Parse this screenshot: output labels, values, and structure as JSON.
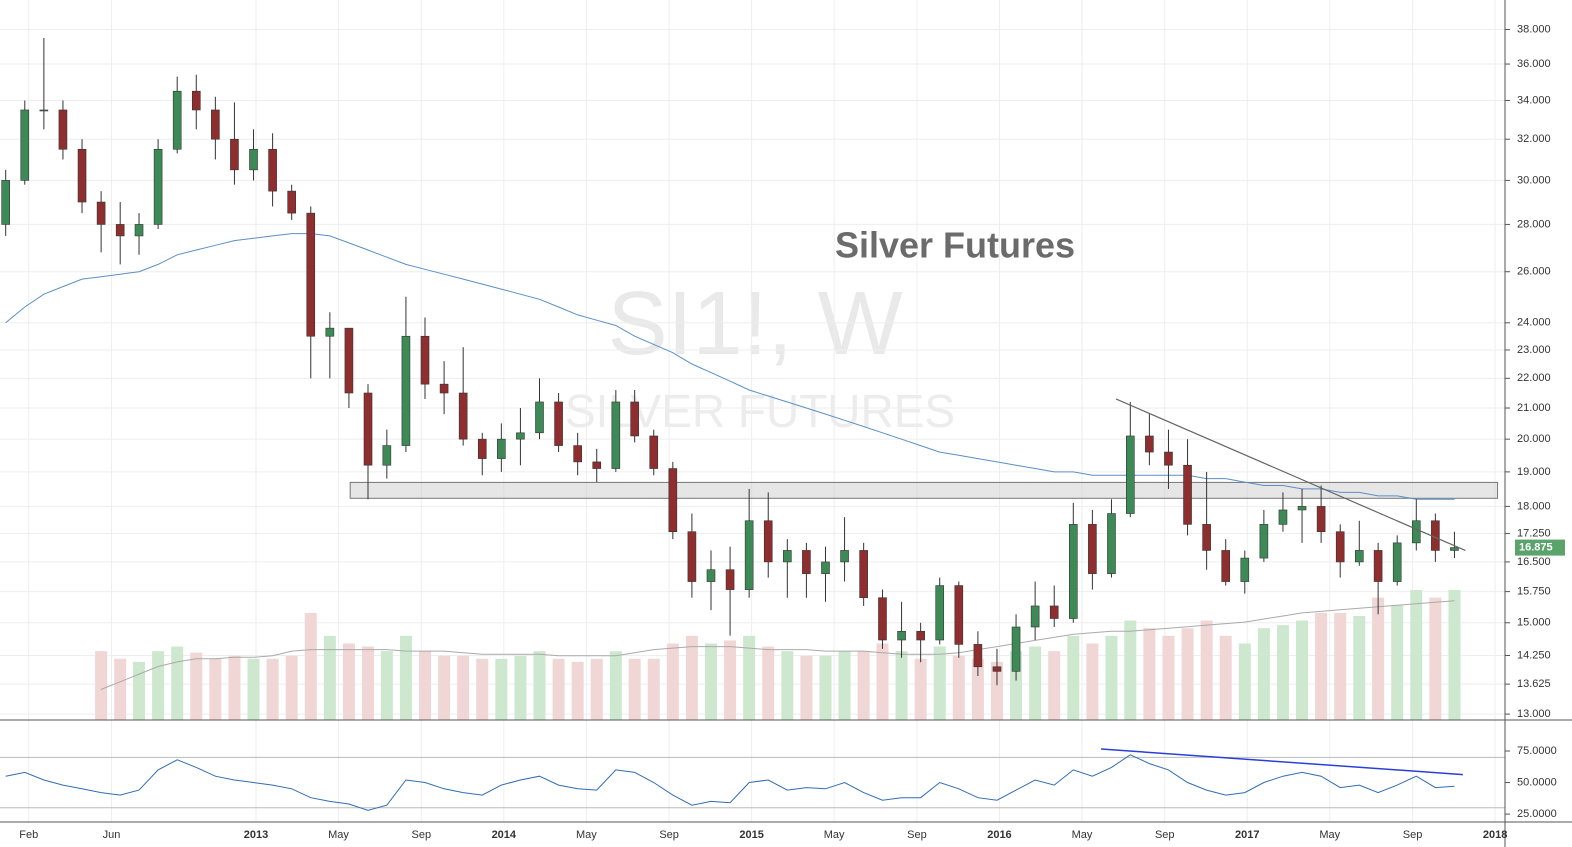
{
  "chart_data": {
    "type": "candlestick",
    "title": "Silver Futures",
    "watermark": "SI1!, W",
    "watermark_subtitle": "SILVER FUTURES",
    "log_y": true,
    "grid": true,
    "up_color": "#3e8a57",
    "down_color": "#8f2e2e",
    "xlim": [
      2011.967,
      2018.04
    ],
    "ylim": [
      12.88,
      39.8
    ],
    "xticks": [
      {
        "value": 2012.083,
        "label": "Feb"
      },
      {
        "value": 2012.417,
        "label": "Jun"
      },
      2013,
      {
        "value": 2013.333,
        "label": "May"
      },
      {
        "value": 2013.667,
        "label": "Sep"
      },
      2014,
      {
        "value": 2014.333,
        "label": "May"
      },
      {
        "value": 2014.667,
        "label": "Sep"
      },
      2015,
      {
        "value": 2015.333,
        "label": "May"
      },
      {
        "value": 2015.667,
        "label": "Sep"
      },
      2016,
      {
        "value": 2016.333,
        "label": "May"
      },
      {
        "value": 2016.667,
        "label": "Sep"
      },
      2017,
      {
        "value": 2017.333,
        "label": "May"
      },
      {
        "value": 2017.667,
        "label": "Sep"
      },
      2018
    ],
    "yticks": [
      {
        "value": 13,
        "label": "13.000"
      },
      {
        "value": 13.625,
        "label": "13.625"
      },
      {
        "value": 14.25,
        "label": "14.250"
      },
      {
        "value": 15,
        "label": "15.000"
      },
      {
        "value": 15.75,
        "label": "15.750"
      },
      {
        "value": 16.5,
        "label": "16.500"
      },
      {
        "value": 17.25,
        "label": "17.250"
      },
      {
        "value": 18,
        "label": "18.000"
      },
      {
        "value": 19,
        "label": "19.000"
      },
      {
        "value": 20,
        "label": "20.000"
      },
      {
        "value": 21,
        "label": "21.000"
      },
      {
        "value": 22,
        "label": "22.000"
      },
      {
        "value": 23,
        "label": "23.000"
      },
      {
        "value": 24,
        "label": "24.000"
      },
      {
        "value": 26,
        "label": "26.000"
      },
      {
        "value": 28,
        "label": "28.000"
      },
      {
        "value": 30,
        "label": "30.000"
      },
      {
        "value": 32,
        "label": "32.000"
      },
      {
        "value": 34,
        "label": "34.000"
      },
      {
        "value": 36,
        "label": "36.000"
      },
      {
        "value": 38,
        "label": "38.000"
      }
    ],
    "x": [
      2011.99,
      2012.067,
      2012.144,
      2012.221,
      2012.298,
      2012.375,
      2012.452,
      2012.528,
      2012.605,
      2012.682,
      2012.759,
      2012.836,
      2012.913,
      2012.99,
      2013.067,
      2013.144,
      2013.221,
      2013.298,
      2013.375,
      2013.452,
      2013.528,
      2013.605,
      2013.682,
      2013.759,
      2013.836,
      2013.913,
      2013.99,
      2014.067,
      2014.144,
      2014.221,
      2014.298,
      2014.375,
      2014.452,
      2014.528,
      2014.605,
      2014.682,
      2014.759,
      2014.836,
      2014.913,
      2014.99,
      2015.067,
      2015.144,
      2015.221,
      2015.298,
      2015.375,
      2015.452,
      2015.528,
      2015.605,
      2015.682,
      2015.759,
      2015.836,
      2015.913,
      2015.99,
      2016.067,
      2016.144,
      2016.221,
      2016.298,
      2016.375,
      2016.452,
      2016.528,
      2016.605,
      2016.682,
      2016.759,
      2016.836,
      2016.913,
      2016.99,
      2017.067,
      2017.144,
      2017.221,
      2017.298,
      2017.375,
      2017.452,
      2017.528,
      2017.605,
      2017.682,
      2017.759,
      2017.836
    ],
    "open": [
      28,
      30,
      33.5,
      33.5,
      31.5,
      29,
      28,
      27.5,
      28,
      31.5,
      34.5,
      33.5,
      32,
      30.5,
      31.5,
      29.5,
      28.5,
      23.5,
      23.8,
      21.5,
      19.2,
      19.8,
      23.5,
      21.8,
      21.5,
      20,
      19.4,
      20,
      20.2,
      21.2,
      19.8,
      19.3,
      19.1,
      21.2,
      20.1,
      19.1,
      17.3,
      16,
      16.3,
      15.8,
      17.6,
      16.5,
      16.8,
      16.2,
      16.5,
      16.8,
      15.6,
      14.6,
      14.8,
      14.6,
      15.9,
      14.5,
      14,
      13.9,
      14.9,
      15.4,
      15.1,
      17.5,
      16.2,
      17.8,
      20.1,
      19.6,
      19.2,
      17.5,
      16.8,
      16,
      16.6,
      17.5,
      17.9,
      18,
      17.3,
      16.5,
      16.8,
      16,
      17,
      17.6,
      16.8
    ],
    "high": [
      30.5,
      34,
      37.5,
      34,
      32,
      29.5,
      29,
      28.5,
      32,
      35.3,
      35.4,
      34.2,
      33.9,
      32.5,
      32.3,
      29.8,
      28.8,
      24.4,
      23.8,
      21.8,
      20.3,
      25,
      24.2,
      22.6,
      23.1,
      20.2,
      20.5,
      21,
      22,
      21.5,
      20.2,
      19.7,
      21.6,
      21.6,
      20.3,
      19.3,
      17.8,
      16.8,
      16.9,
      18.5,
      18.4,
      17.1,
      17,
      16.9,
      17.7,
      17,
      15.8,
      15.5,
      15,
      16.1,
      16,
      14.8,
      14.4,
      15.2,
      16,
      15.9,
      18.1,
      17.9,
      18.2,
      21.2,
      20.8,
      20.3,
      20,
      19,
      17.1,
      16.8,
      17.9,
      18.4,
      18.5,
      18.6,
      17.5,
      17.6,
      17,
      17.2,
      18.2,
      17.8,
      17.3
    ],
    "low": [
      27.5,
      29.8,
      32.5,
      31,
      28.5,
      26.8,
      26.3,
      26.7,
      27.8,
      31.3,
      32.5,
      31,
      29.8,
      30,
      28.8,
      28.2,
      22,
      22,
      21,
      18.2,
      18.8,
      19.6,
      21.3,
      20.8,
      19.8,
      18.9,
      19,
      19.2,
      20,
      19.6,
      18.9,
      18.7,
      19,
      19.9,
      18.9,
      17.1,
      15.6,
      15.3,
      14.7,
      15.6,
      16.1,
      15.6,
      15.6,
      15.5,
      16,
      15.4,
      14.4,
      14.2,
      14.1,
      14.5,
      14.2,
      13.8,
      13.6,
      13.7,
      14.6,
      14.9,
      15,
      15.8,
      16.1,
      17.7,
      19.2,
      18.5,
      17.2,
      16.3,
      15.9,
      15.7,
      16.5,
      17.3,
      17,
      17,
      16.1,
      16.4,
      15.2,
      15.9,
      16.8,
      16.5,
      16.6
    ],
    "close": [
      30,
      33.5,
      33.5,
      31.5,
      29,
      28,
      27.5,
      28,
      31.5,
      34.5,
      33.5,
      32,
      30.5,
      31.5,
      29.5,
      28.5,
      23.5,
      23.8,
      21.5,
      19.2,
      19.8,
      23.5,
      21.8,
      21.5,
      20,
      19.4,
      20,
      20.2,
      21.2,
      19.8,
      19.3,
      19.1,
      21.2,
      20.1,
      19.1,
      17.3,
      16,
      16.3,
      15.8,
      17.6,
      16.5,
      16.8,
      16.2,
      16.5,
      16.8,
      15.6,
      14.6,
      14.8,
      14.6,
      15.9,
      14.5,
      14,
      13.9,
      14.9,
      15.4,
      15.1,
      17.5,
      16.2,
      17.8,
      20.1,
      19.6,
      19.2,
      17.5,
      16.8,
      16,
      16.6,
      17.5,
      17.9,
      18,
      17.3,
      16.5,
      16.8,
      16,
      17,
      17.6,
      16.8,
      16.875
    ],
    "last_price": 16.875,
    "moving_average": {
      "color": "#5b8fc7",
      "values": [
        24,
        24.6,
        25.1,
        25.4,
        25.7,
        25.8,
        25.9,
        26,
        26.3,
        26.7,
        26.9,
        27.1,
        27.3,
        27.4,
        27.5,
        27.6,
        27.6,
        27.5,
        27.2,
        26.9,
        26.6,
        26.3,
        26.1,
        25.9,
        25.7,
        25.5,
        25.3,
        25.1,
        24.9,
        24.6,
        24.3,
        24.1,
        23.9,
        23.5,
        23.2,
        22.9,
        22.5,
        22.2,
        21.9,
        21.6,
        21.4,
        21.2,
        21,
        20.8,
        20.6,
        20.4,
        20.2,
        20,
        19.8,
        19.6,
        19.5,
        19.4,
        19.3,
        19.2,
        19.1,
        19,
        19,
        18.9,
        18.9,
        18.9,
        18.9,
        18.9,
        18.9,
        18.8,
        18.8,
        18.7,
        18.6,
        18.6,
        18.5,
        18.5,
        18.4,
        18.4,
        18.3,
        18.3,
        18.2,
        18.2,
        18.2
      ]
    },
    "support_zone": {
      "x": [
        2013.38,
        2018.01
      ],
      "y": [
        18.23,
        18.69
      ]
    },
    "trendline": {
      "x": [
        2016.47,
        2017.88
      ],
      "y": [
        21.3,
        16.8
      ]
    },
    "volume": {
      "vlim": [
        0,
        100
      ],
      "values": [
        null,
        null,
        null,
        null,
        null,
        45,
        40,
        38,
        45,
        48,
        44,
        40,
        42,
        40,
        40,
        42,
        70,
        55,
        50,
        48,
        45,
        55,
        45,
        42,
        42,
        40,
        40,
        42,
        45,
        40,
        38,
        40,
        45,
        40,
        40,
        50,
        55,
        50,
        52,
        55,
        48,
        45,
        42,
        42,
        45,
        45,
        50,
        45,
        40,
        48,
        42,
        40,
        38,
        45,
        48,
        45,
        55,
        50,
        55,
        65,
        60,
        55,
        60,
        65,
        55,
        50,
        60,
        62,
        65,
        70,
        70,
        68,
        80,
        75,
        85,
        80,
        85
      ],
      "moving_average": [
        null,
        null,
        null,
        null,
        null,
        20,
        25,
        30,
        35,
        38,
        40,
        40,
        41,
        41,
        42,
        45,
        46,
        46,
        46,
        46,
        46,
        45,
        45,
        45,
        44,
        43,
        43,
        43,
        43,
        42,
        42,
        42,
        42,
        44,
        46,
        47,
        48,
        48,
        48,
        47,
        46,
        46,
        46,
        45,
        45,
        45,
        44,
        43,
        43,
        43,
        44,
        46,
        48,
        50,
        52,
        54,
        56,
        57,
        58,
        58,
        59,
        60,
        61,
        62,
        63,
        64,
        66,
        68,
        70,
        71,
        72,
        73,
        74,
        75,
        76,
        77,
        78
      ]
    },
    "rsi": {
      "color": "#2f6db5",
      "ylim": [
        18.7,
        99.6
      ],
      "bands": [
        70,
        30
      ],
      "yticks": [
        {
          "value": 75,
          "label": "75.0000"
        },
        {
          "value": 50,
          "label": "50.0000"
        },
        {
          "value": 25,
          "label": "25.0000"
        }
      ],
      "values": [
        55,
        58,
        52,
        48,
        45,
        42,
        40,
        44,
        60,
        68,
        62,
        55,
        52,
        50,
        48,
        45,
        38,
        35,
        33,
        28,
        32,
        52,
        50,
        45,
        42,
        40,
        48,
        52,
        55,
        48,
        45,
        44,
        60,
        58,
        50,
        40,
        32,
        35,
        34,
        50,
        52,
        44,
        46,
        45,
        50,
        42,
        36,
        38,
        38,
        50,
        45,
        38,
        36,
        44,
        52,
        48,
        60,
        55,
        62,
        72,
        65,
        60,
        50,
        44,
        40,
        42,
        50,
        55,
        58,
        55,
        46,
        48,
        42,
        48,
        55,
        46,
        47
      ],
      "trendline": {
        "color": "#2a3fd6",
        "x": [
          2016.41,
          2017.87
        ],
        "y": [
          76.6,
          56.3
        ]
      }
    }
  }
}
